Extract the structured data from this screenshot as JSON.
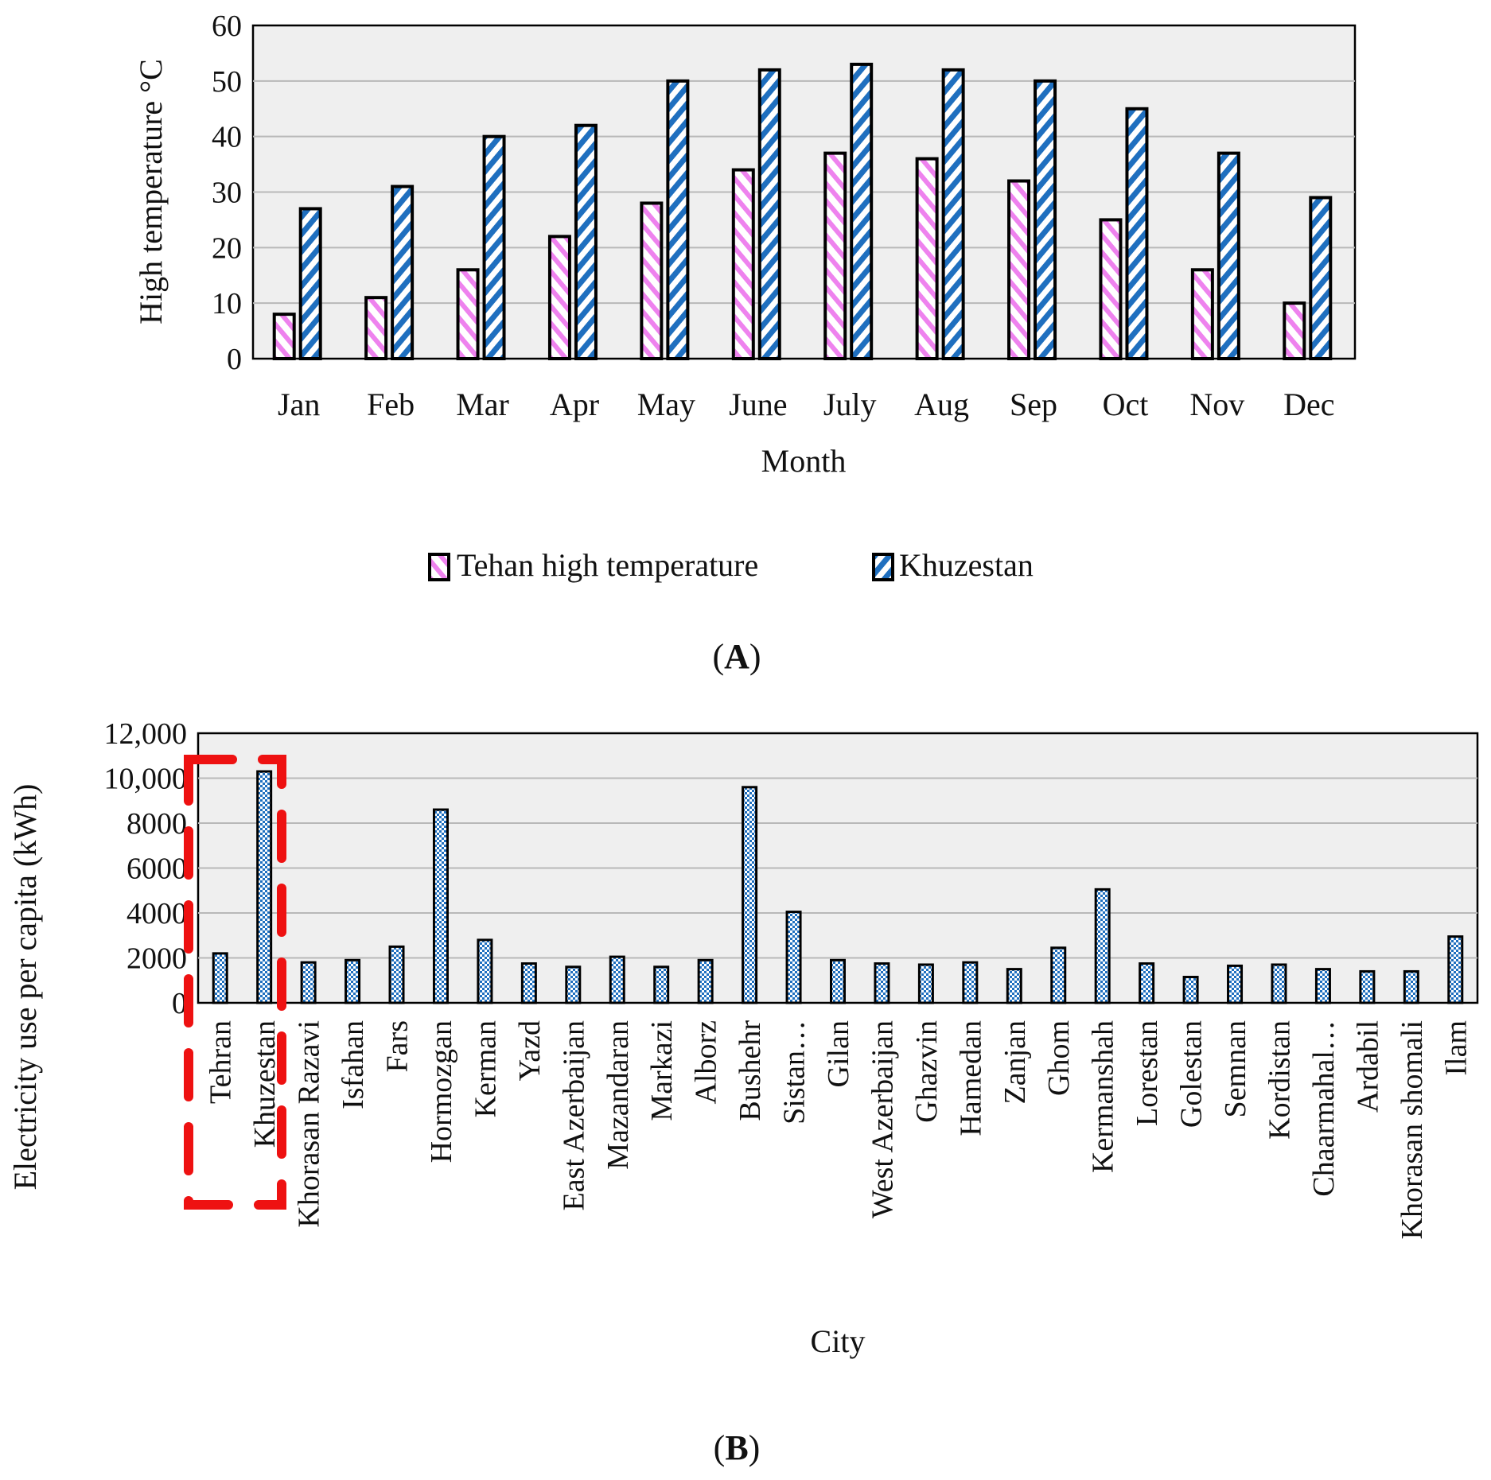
{
  "colors": {
    "plot_bg": "#efefef",
    "grid": "#b8b8b8",
    "tehran_pink": "#ee82ee",
    "khuzestan_blue": "#1f6fbf",
    "highlight_red": "#ee1111"
  },
  "chart_data": [
    {
      "panel": "(A)",
      "panel_letter": "A",
      "type": "bar",
      "title": "",
      "xlabel": "Month",
      "ylabel": "High temperature °C",
      "ylim": [
        0,
        60
      ],
      "yticks": [
        "0",
        "10",
        "20",
        "30",
        "40",
        "50",
        "60"
      ],
      "grid": true,
      "legend_position": "bottom",
      "categories": [
        "Jan",
        "Feb",
        "Mar",
        "Apr",
        "May",
        "June",
        "July",
        "Aug",
        "Sep",
        "Oct",
        "Nov",
        "Dec"
      ],
      "series": [
        {
          "name": "Tehan high temperature",
          "pattern": "pink-diagonal",
          "values": [
            8,
            11,
            16,
            22,
            28,
            34,
            37,
            36,
            32,
            25,
            16,
            10
          ]
        },
        {
          "name": "Khuzestan",
          "pattern": "blue-diagonal",
          "values": [
            27,
            31,
            40,
            42,
            50,
            52,
            53,
            52,
            50,
            45,
            37,
            29
          ]
        }
      ]
    },
    {
      "panel": "(B)",
      "panel_letter": "B",
      "type": "bar",
      "title": "",
      "xlabel": "City",
      "ylabel": "Electricity use per capita (kWh)",
      "ylim": [
        0,
        12000
      ],
      "yticks": [
        "0",
        "2000",
        "4000",
        "6000",
        "8000",
        "10,000",
        "12,000"
      ],
      "grid": true,
      "highlighted_categories": [
        "Tehran",
        "Khuzestan"
      ],
      "categories": [
        "Tehran",
        "Khuzestan",
        "Khorasan Razavi",
        "Isfahan",
        "Fars",
        "Hormozgan",
        "Kerman",
        "Yazd",
        "East Azerbaijan",
        "Mazandaran",
        "Markazi",
        "Alborz",
        "Bushehr",
        "Sistan…",
        "Gilan",
        "West Azerbaijan",
        "Ghazvin",
        "Hamedan",
        "Zanjan",
        "Ghom",
        "Kermanshah",
        "Lorestan",
        "Golestan",
        "Semnan",
        "Kordistan",
        "Chaarmahal…",
        "Ardabil",
        "Khorasan shomali",
        "Ilam"
      ],
      "series": [
        {
          "name": "Electricity use per capita",
          "pattern": "blue-checker",
          "values": [
            2200,
            10300,
            1800,
            1900,
            2500,
            8600,
            2800,
            1750,
            1600,
            2050,
            1600,
            1900,
            9600,
            4050,
            1900,
            1750,
            1700,
            1800,
            1500,
            2450,
            5050,
            1750,
            1150,
            1650,
            1700,
            1500,
            1400,
            1400,
            2950
          ]
        }
      ]
    }
  ]
}
